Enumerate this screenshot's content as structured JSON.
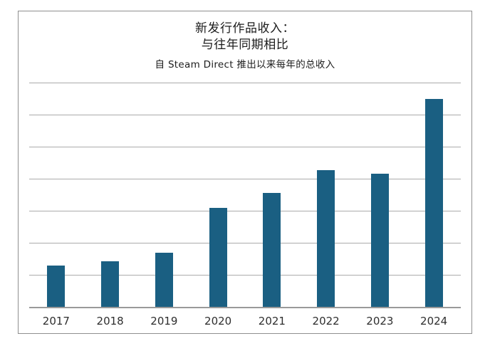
{
  "page": {
    "background": "#ffffff"
  },
  "frame": {
    "border_color": "#8f8f8f",
    "background": "#ffffff"
  },
  "chart_data": {
    "type": "bar",
    "title_lines": [
      "新发行作品收入：",
      "与往年同期相比"
    ],
    "title": "新发行作品收入：与往年同期相比",
    "subtitle": "自 Steam Direct 推出以来每年的总收入",
    "categories": [
      "2017",
      "2018",
      "2019",
      "2020",
      "2021",
      "2022",
      "2023",
      "2024"
    ],
    "values": [
      1.28,
      1.42,
      1.7,
      3.08,
      3.55,
      4.26,
      4.16,
      6.49
    ],
    "value_scale": "relative units; y-axis has no tick labels, 1 unit = one gridline interval",
    "ylim": [
      0,
      7
    ],
    "gridline_count": 7,
    "grid": "horizontal-only",
    "legend": "none",
    "xlabel": "",
    "ylabel": "",
    "y_tick_labels": "none",
    "bar_color": "#1a5f82",
    "gridline_color": "#ababab",
    "axis_line_color": "#9a9a9a",
    "tick_label_color": "#2e2e2e",
    "title_color": "#1d1d1d"
  }
}
